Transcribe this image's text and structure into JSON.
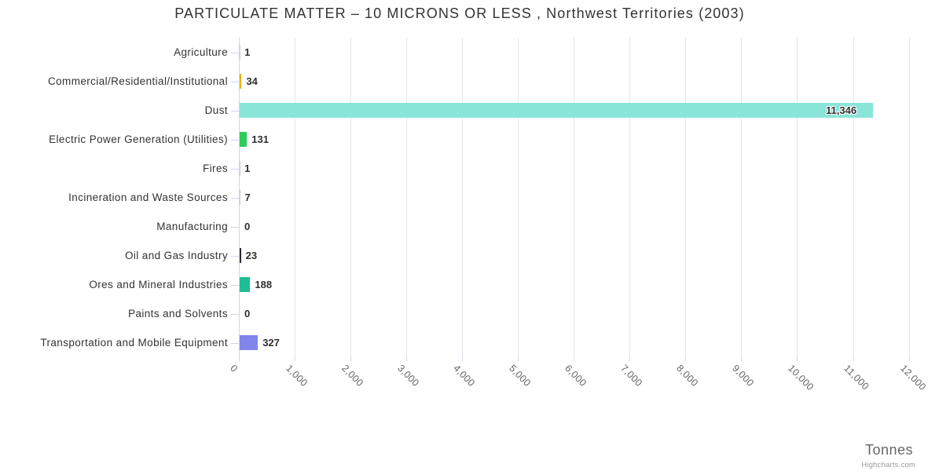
{
  "title": "PARTICULATE MATTER – 10 MICRONS OR LESS , Northwest Territories (2003)",
  "credits": "Highcharts.com",
  "chart_data": {
    "type": "bar",
    "orientation": "horizontal",
    "title": "PARTICULATE MATTER – 10 MICRONS OR LESS , Northwest Territories (2003)",
    "categories": [
      "Agriculture",
      "Commercial/Residential/Institutional",
      "Dust",
      "Electric Power Generation (Utilities)",
      "Fires",
      "Incineration and Waste Sources",
      "Manufacturing",
      "Oil and Gas Industry",
      "Ores and Mineral Industries",
      "Paints and Solvents",
      "Transportation and Mobile Equipment"
    ],
    "values": [
      1,
      34,
      11346,
      131,
      1,
      7,
      0,
      23,
      188,
      0,
      327
    ],
    "value_labels": [
      "1",
      "34",
      "11,346",
      "131",
      "1",
      "7",
      "0",
      "23",
      "188",
      "0",
      "327"
    ],
    "colors": [
      null,
      "#edb30f",
      "#8ae5d9",
      "#2ecc59",
      null,
      null,
      null,
      "#2b2b33",
      "#1fbd96",
      null,
      "#8085e9"
    ],
    "xlabel": "Tonnes",
    "x_ticks": [
      "0",
      "1,000",
      "2,000",
      "3,000",
      "4,000",
      "5,000",
      "6,000",
      "7,000",
      "8,000",
      "9,000",
      "10,000",
      "11,000",
      "12,000"
    ],
    "xlim": [
      0,
      12000
    ],
    "grid": true,
    "legend": "none",
    "style": {
      "grid_color": "#e6e6e6",
      "axis_color": "#ccd6eb",
      "title_color": "#333333",
      "category_label_color": "#333333",
      "value_label_color": "#2f2f2f",
      "x_tick_label_color": "#666666",
      "axis_title_color": "#666666",
      "credits_color": "#999999"
    }
  }
}
